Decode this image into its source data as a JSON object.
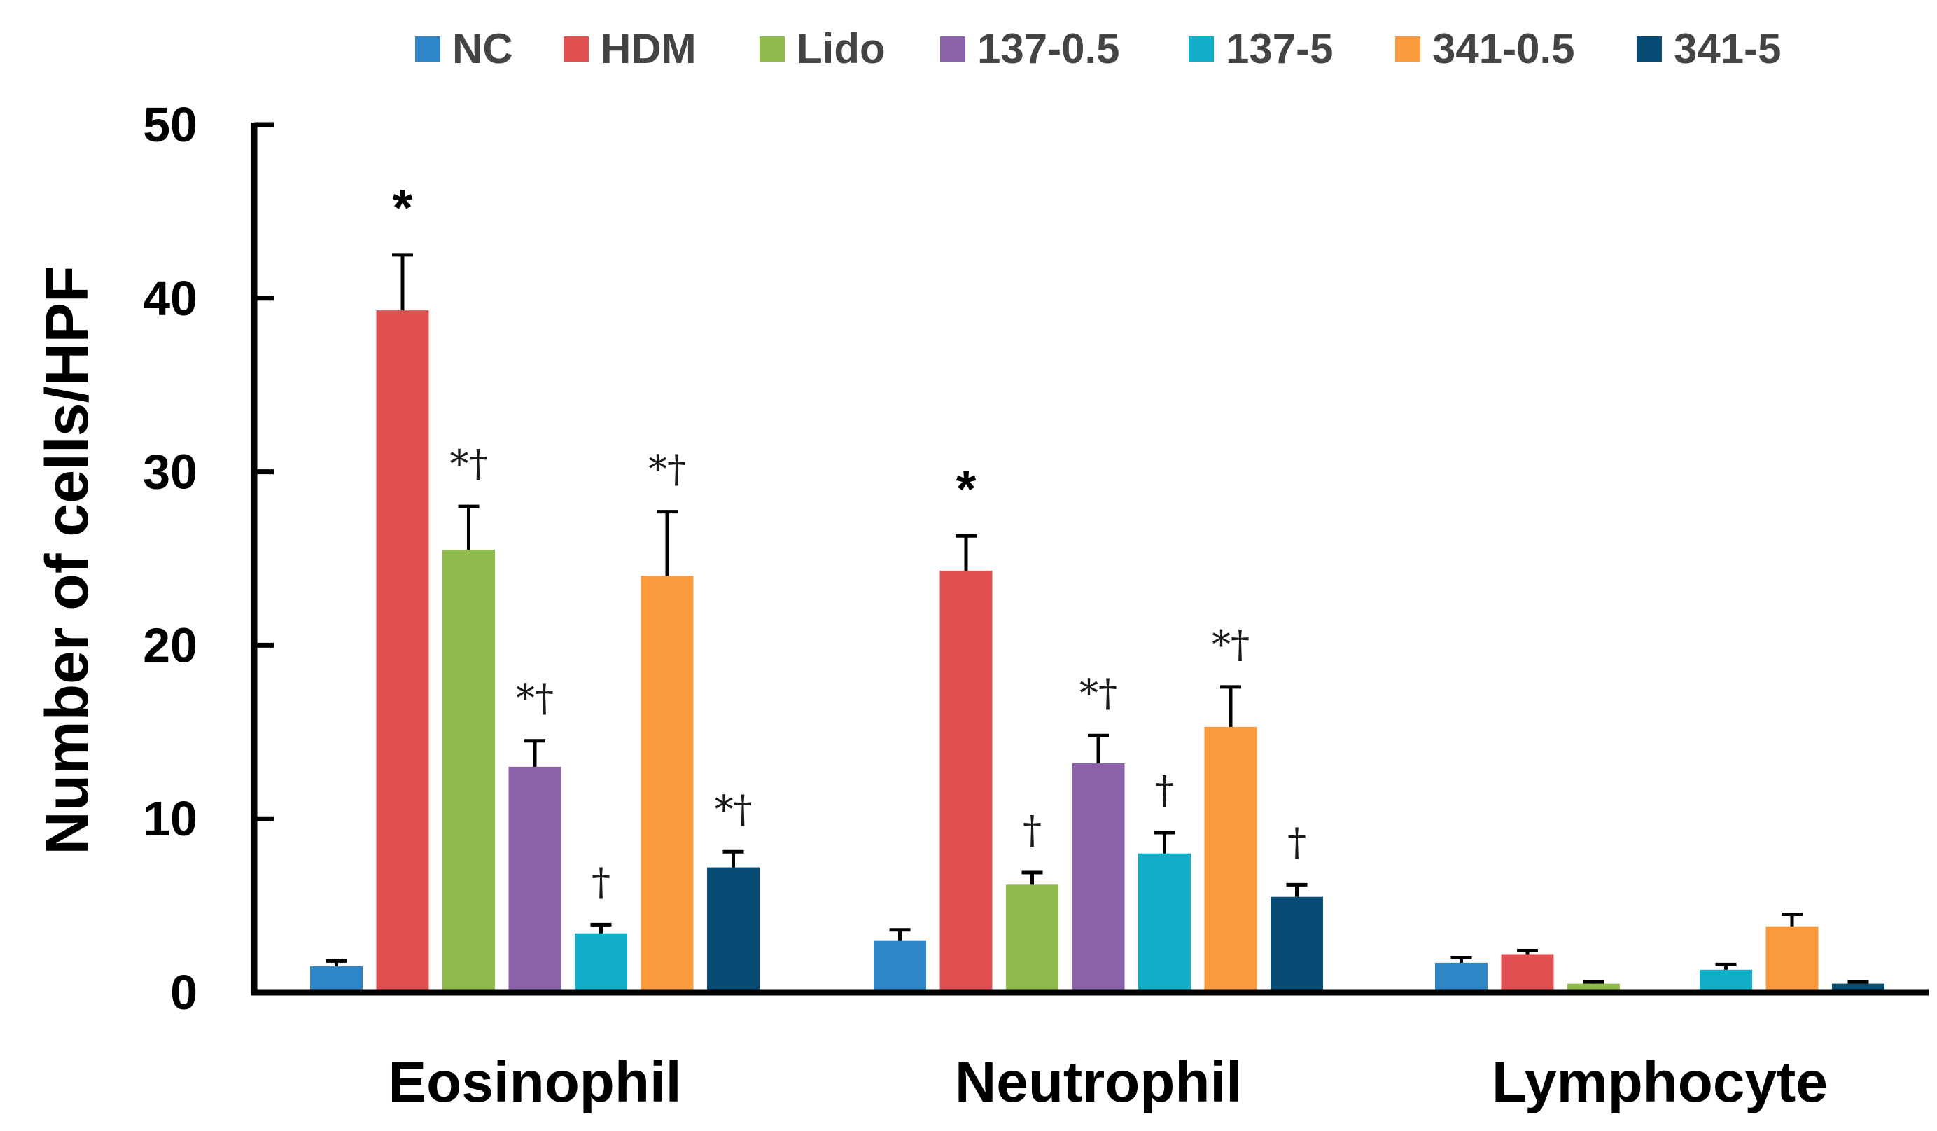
{
  "chart_data": {
    "type": "bar",
    "ylabel": "Number of cells/HPF",
    "xlabel": "",
    "ylim": [
      0,
      50
    ],
    "yticks": [
      "0",
      "10",
      "20",
      "30",
      "40",
      "50"
    ],
    "categories": [
      "Eosinophil",
      "Neutrophil",
      "Lymphocyte"
    ],
    "legend_position": "top",
    "series": [
      {
        "name": "NC",
        "color": "#2e86c6",
        "values": [
          1.5,
          3.0,
          1.7
        ],
        "errors": [
          0.3,
          0.6,
          0.3
        ],
        "marks": [
          "",
          "",
          ""
        ]
      },
      {
        "name": "HDM",
        "color": "#e05050",
        "values": [
          39.3,
          24.3,
          2.2
        ],
        "errors": [
          3.2,
          2.0,
          0.2
        ],
        "marks": [
          "*",
          "*",
          ""
        ]
      },
      {
        "name": "Lido",
        "color": "#8fbc4c",
        "values": [
          25.5,
          6.2,
          0.5
        ],
        "errors": [
          2.5,
          0.7,
          0.1
        ],
        "marks": [
          "*†",
          "†",
          ""
        ]
      },
      {
        "name": "137-0.5",
        "color": "#8c63a8",
        "values": [
          13.0,
          13.2,
          0
        ],
        "errors": [
          1.5,
          1.6,
          0
        ],
        "marks": [
          "*†",
          "*†",
          ""
        ]
      },
      {
        "name": "137-5",
        "color": "#12b0c8",
        "values": [
          3.4,
          8.0,
          1.3
        ],
        "errors": [
          0.5,
          1.2,
          0.3
        ],
        "marks": [
          "†",
          "†",
          ""
        ]
      },
      {
        "name": "341-0.5",
        "color": "#fa9a3c",
        "values": [
          24.0,
          15.3,
          3.8
        ],
        "errors": [
          3.7,
          2.3,
          0.7
        ],
        "marks": [
          "*†",
          "*†",
          ""
        ]
      },
      {
        "name": "341-5",
        "color": "#064b73",
        "values": [
          7.2,
          5.5,
          0.5
        ],
        "errors": [
          0.9,
          0.7,
          0.1
        ],
        "marks": [
          "*†",
          "†",
          ""
        ]
      }
    ]
  }
}
